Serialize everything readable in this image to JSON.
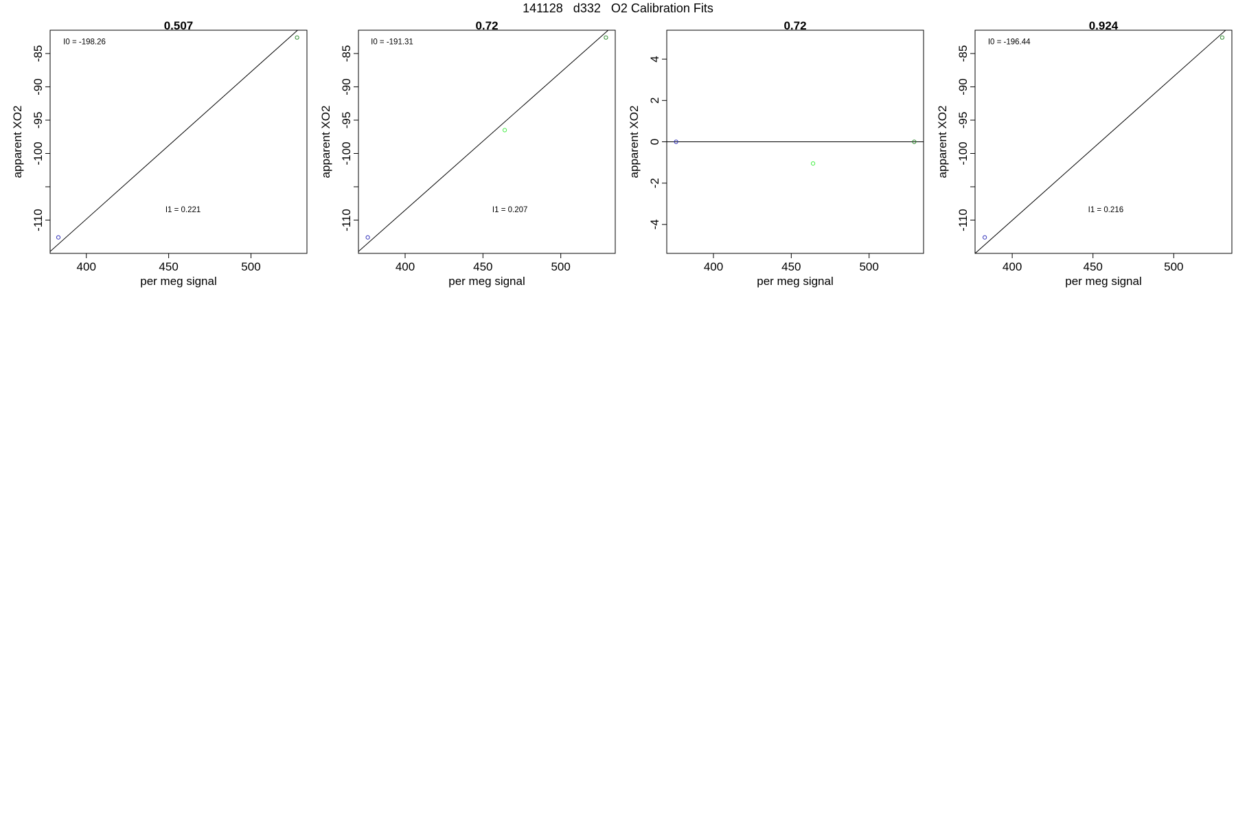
{
  "page_title": "141128   d332   O2 Calibration Fits",
  "chart_data": [
    {
      "type": "scatter",
      "title": "0.507",
      "xlabel": "per meg signal",
      "ylabel": "apparent XO2",
      "xlim": [
        378,
        534
      ],
      "ylim": [
        -115,
        -81.5
      ],
      "xticks": [
        400,
        450,
        500
      ],
      "yticks": [
        -85,
        -90,
        -95,
        -100,
        -110
      ],
      "yminor_ticks": [
        -105
      ],
      "points": [
        {
          "x": 383,
          "y": -112.6,
          "color": "#3333bb"
        },
        {
          "x": 528,
          "y": -82.6,
          "color": "#2e8b2e"
        }
      ],
      "fit_line": {
        "slope": 0.221,
        "intercept": -198.26
      },
      "annotations": [
        {
          "label": "I0 =  -198.26",
          "x": 386,
          "y": -83.6
        },
        {
          "label": "I1 =  0.221",
          "x": 448,
          "y": -108.8
        }
      ]
    },
    {
      "type": "scatter",
      "title": "0.72",
      "xlabel": "per meg signal",
      "ylabel": "apparent XO2",
      "xlim": [
        370,
        535
      ],
      "ylim": [
        -115,
        -81.5
      ],
      "xticks": [
        400,
        450,
        500
      ],
      "yticks": [
        -85,
        -90,
        -95,
        -100,
        -110
      ],
      "yminor_ticks": [
        -105
      ],
      "points": [
        {
          "x": 376,
          "y": -112.6,
          "color": "#3333bb"
        },
        {
          "x": 464,
          "y": -96.5,
          "color": "#44ee44"
        },
        {
          "x": 529,
          "y": -82.6,
          "color": "#2e8b2e"
        }
      ],
      "fit_line": {
        "slope": 0.207,
        "intercept": -191.31
      },
      "annotations": [
        {
          "label": "I0 =  -191.31",
          "x": 378,
          "y": -83.6
        },
        {
          "label": "I1 =  0.207",
          "x": 456,
          "y": -108.8
        }
      ]
    },
    {
      "type": "scatter",
      "title": "0.72",
      "xlabel": "per meg signal",
      "ylabel": "apparent XO2",
      "xlim": [
        370,
        535
      ],
      "ylim": [
        -5.4,
        5.4
      ],
      "xticks": [
        400,
        450,
        500
      ],
      "yticks": [
        4,
        2,
        0,
        -2,
        -4
      ],
      "yminor_ticks": [],
      "points": [
        {
          "x": 376,
          "y": 0,
          "color": "#3333bb"
        },
        {
          "x": 464,
          "y": -1.05,
          "color": "#44ee44"
        },
        {
          "x": 529,
          "y": 0,
          "color": "#2e8b2e"
        }
      ],
      "fit_line": {
        "slope": 0,
        "intercept": 0
      },
      "annotations": []
    },
    {
      "type": "scatter",
      "title": "0.924",
      "xlabel": "per meg signal",
      "ylabel": "apparent XO2",
      "xlim": [
        377,
        536
      ],
      "ylim": [
        -115,
        -81.5
      ],
      "xticks": [
        400,
        450,
        500
      ],
      "yticks": [
        -85,
        -90,
        -95,
        -100,
        -110
      ],
      "yminor_ticks": [
        -105
      ],
      "points": [
        {
          "x": 383,
          "y": -112.6,
          "color": "#3333bb"
        },
        {
          "x": 530,
          "y": -82.6,
          "color": "#2e8b2e"
        }
      ],
      "fit_line": {
        "slope": 0.216,
        "intercept": -196.44
      },
      "annotations": [
        {
          "label": "I0 =  -196.44",
          "x": 385,
          "y": -83.6
        },
        {
          "label": "I1 =  0.216",
          "x": 447,
          "y": -108.8
        }
      ]
    }
  ]
}
